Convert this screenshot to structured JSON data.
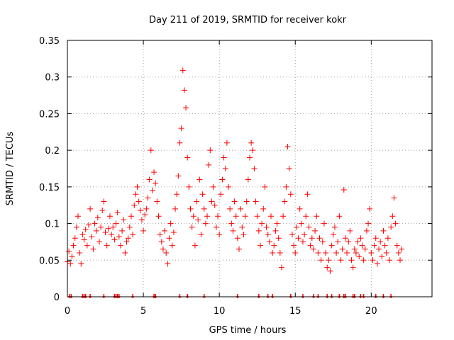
{
  "chart_data": {
    "type": "scatter",
    "title": "Day 211 of 2019, SRMTID for receiver kokr",
    "xlabel": "GPS time / hours",
    "ylabel": "SRMTID / TECUs",
    "xlim": [
      0,
      24
    ],
    "ylim": [
      0,
      0.35
    ],
    "grid": true,
    "marker": "+",
    "x_ticks": [
      0,
      5,
      10,
      15,
      20
    ],
    "x_tick_labels": [
      "0",
      "5",
      "10",
      "15",
      "20"
    ],
    "y_ticks": [
      0,
      0.05,
      0.1,
      0.15,
      0.2,
      0.25,
      0.3,
      0.35
    ],
    "y_tick_labels": [
      "0",
      "0.05",
      "0.1",
      "0.15",
      "0.2",
      "0.25",
      "0.3",
      "0.35"
    ],
    "series": [
      {
        "name": "SRMTID",
        "color": "#ff0000",
        "points": [
          [
            0.0,
            0.048
          ],
          [
            0.1,
            0.062
          ],
          [
            0.2,
            0.045
          ],
          [
            0.3,
            0.055
          ],
          [
            0.4,
            0.07
          ],
          [
            0.5,
            0.08
          ],
          [
            0.6,
            0.095
          ],
          [
            0.7,
            0.11
          ],
          [
            0.8,
            0.06
          ],
          [
            0.9,
            0.045
          ],
          [
            1.0,
            0.085
          ],
          [
            1.1,
            0.078
          ],
          [
            1.2,
            0.092
          ],
          [
            1.3,
            0.07
          ],
          [
            1.4,
            0.098
          ],
          [
            1.5,
            0.12
          ],
          [
            1.6,
            0.082
          ],
          [
            1.7,
            0.065
          ],
          [
            1.8,
            0.1
          ],
          [
            1.9,
            0.09
          ],
          [
            2.0,
            0.108
          ],
          [
            2.1,
            0.075
          ],
          [
            2.2,
            0.095
          ],
          [
            2.3,
            0.118
          ],
          [
            2.4,
            0.13
          ],
          [
            2.5,
            0.088
          ],
          [
            2.6,
            0.07
          ],
          [
            2.7,
            0.093
          ],
          [
            2.8,
            0.11
          ],
          [
            2.9,
            0.085
          ],
          [
            3.0,
            0.095
          ],
          [
            3.1,
            0.078
          ],
          [
            3.2,
            0.1
          ],
          [
            3.3,
            0.115
          ],
          [
            3.4,
            0.082
          ],
          [
            3.5,
            0.07
          ],
          [
            3.6,
            0.09
          ],
          [
            3.7,
            0.105
          ],
          [
            3.8,
            0.06
          ],
          [
            3.9,
            0.075
          ],
          [
            4.0,
            0.08
          ],
          [
            4.1,
            0.095
          ],
          [
            4.2,
            0.11
          ],
          [
            4.3,
            0.085
          ],
          [
            4.4,
            0.125
          ],
          [
            4.5,
            0.14
          ],
          [
            4.6,
            0.15
          ],
          [
            4.7,
            0.13
          ],
          [
            4.8,
            0.118
          ],
          [
            4.9,
            0.105
          ],
          [
            5.0,
            0.09
          ],
          [
            5.1,
            0.112
          ],
          [
            5.2,
            0.12
          ],
          [
            5.3,
            0.135
          ],
          [
            5.4,
            0.16
          ],
          [
            5.5,
            0.2
          ],
          [
            5.6,
            0.145
          ],
          [
            5.7,
            0.17
          ],
          [
            5.8,
            0.155
          ],
          [
            5.9,
            0.13
          ],
          [
            6.0,
            0.11
          ],
          [
            6.1,
            0.085
          ],
          [
            6.2,
            0.075
          ],
          [
            6.3,
            0.065
          ],
          [
            6.4,
            0.09
          ],
          [
            6.5,
            0.06
          ],
          [
            6.6,
            0.045
          ],
          [
            6.7,
            0.08
          ],
          [
            6.8,
            0.1
          ],
          [
            6.9,
            0.07
          ],
          [
            7.0,
            0.088
          ],
          [
            7.1,
            0.12
          ],
          [
            7.2,
            0.14
          ],
          [
            7.3,
            0.165
          ],
          [
            7.4,
            0.21
          ],
          [
            7.5,
            0.23
          ],
          [
            7.6,
            0.309
          ],
          [
            7.7,
            0.282
          ],
          [
            7.8,
            0.258
          ],
          [
            7.9,
            0.19
          ],
          [
            8.0,
            0.15
          ],
          [
            8.1,
            0.12
          ],
          [
            8.2,
            0.095
          ],
          [
            8.3,
            0.11
          ],
          [
            8.4,
            0.07
          ],
          [
            8.5,
            0.13
          ],
          [
            8.6,
            0.105
          ],
          [
            8.7,
            0.16
          ],
          [
            8.8,
            0.085
          ],
          [
            8.9,
            0.14
          ],
          [
            9.0,
            0.12
          ],
          [
            9.1,
            0.1
          ],
          [
            9.2,
            0.11
          ],
          [
            9.3,
            0.18
          ],
          [
            9.4,
            0.2
          ],
          [
            9.5,
            0.13
          ],
          [
            9.6,
            0.15
          ],
          [
            9.7,
            0.125
          ],
          [
            9.8,
            0.095
          ],
          [
            9.9,
            0.11
          ],
          [
            10.0,
            0.085
          ],
          [
            10.1,
            0.14
          ],
          [
            10.2,
            0.16
          ],
          [
            10.3,
            0.19
          ],
          [
            10.4,
            0.175
          ],
          [
            10.5,
            0.21
          ],
          [
            10.6,
            0.15
          ],
          [
            10.7,
            0.12
          ],
          [
            10.8,
            0.1
          ],
          [
            10.9,
            0.09
          ],
          [
            11.0,
            0.13
          ],
          [
            11.1,
            0.11
          ],
          [
            11.2,
            0.08
          ],
          [
            11.3,
            0.065
          ],
          [
            11.4,
            0.12
          ],
          [
            11.5,
            0.095
          ],
          [
            11.6,
            0.085
          ],
          [
            11.7,
            0.11
          ],
          [
            11.8,
            0.13
          ],
          [
            11.9,
            0.16
          ],
          [
            12.0,
            0.19
          ],
          [
            12.1,
            0.21
          ],
          [
            12.2,
            0.2
          ],
          [
            12.3,
            0.175
          ],
          [
            12.4,
            0.13
          ],
          [
            12.5,
            0.11
          ],
          [
            12.6,
            0.09
          ],
          [
            12.7,
            0.07
          ],
          [
            12.8,
            0.1
          ],
          [
            12.9,
            0.12
          ],
          [
            13.0,
            0.15
          ],
          [
            13.1,
            0.095
          ],
          [
            13.2,
            0.085
          ],
          [
            13.3,
            0.075
          ],
          [
            13.4,
            0.11
          ],
          [
            13.5,
            0.06
          ],
          [
            13.6,
            0.07
          ],
          [
            13.7,
            0.09
          ],
          [
            13.8,
            0.1
          ],
          [
            13.9,
            0.08
          ],
          [
            14.0,
            0.06
          ],
          [
            14.1,
            0.04
          ],
          [
            14.2,
            0.11
          ],
          [
            14.3,
            0.13
          ],
          [
            14.4,
            0.15
          ],
          [
            14.5,
            0.205
          ],
          [
            14.6,
            0.175
          ],
          [
            14.7,
            0.14
          ],
          [
            14.8,
            0.085
          ],
          [
            14.9,
            0.07
          ],
          [
            15.0,
            0.06
          ],
          [
            15.1,
            0.095
          ],
          [
            15.2,
            0.08
          ],
          [
            15.3,
            0.12
          ],
          [
            15.4,
            0.1
          ],
          [
            15.5,
            0.075
          ],
          [
            15.6,
            0.085
          ],
          [
            15.7,
            0.11
          ],
          [
            15.8,
            0.14
          ],
          [
            15.9,
            0.095
          ],
          [
            16.0,
            0.07
          ],
          [
            16.1,
            0.08
          ],
          [
            16.2,
            0.065
          ],
          [
            16.3,
            0.09
          ],
          [
            16.4,
            0.11
          ],
          [
            16.5,
            0.06
          ],
          [
            16.6,
            0.08
          ],
          [
            16.7,
            0.05
          ],
          [
            16.8,
            0.075
          ],
          [
            16.9,
            0.1
          ],
          [
            17.0,
            0.06
          ],
          [
            17.1,
            0.04
          ],
          [
            17.2,
            0.05
          ],
          [
            17.3,
            0.035
          ],
          [
            17.4,
            0.07
          ],
          [
            17.5,
            0.085
          ],
          [
            17.6,
            0.095
          ],
          [
            17.7,
            0.06
          ],
          [
            17.8,
            0.075
          ],
          [
            17.9,
            0.11
          ],
          [
            18.0,
            0.05
          ],
          [
            18.1,
            0.065
          ],
          [
            18.2,
            0.146
          ],
          [
            18.3,
            0.08
          ],
          [
            18.4,
            0.06
          ],
          [
            18.5,
            0.075
          ],
          [
            18.6,
            0.09
          ],
          [
            18.7,
            0.05
          ],
          [
            18.8,
            0.04
          ],
          [
            18.9,
            0.065
          ],
          [
            19.0,
            0.06
          ],
          [
            19.1,
            0.075
          ],
          [
            19.2,
            0.055
          ],
          [
            19.3,
            0.08
          ],
          [
            19.4,
            0.07
          ],
          [
            19.5,
            0.05
          ],
          [
            19.6,
            0.065
          ],
          [
            19.7,
            0.09
          ],
          [
            19.8,
            0.1
          ],
          [
            19.9,
            0.12
          ],
          [
            20.0,
            0.06
          ],
          [
            20.1,
            0.05
          ],
          [
            20.2,
            0.07
          ],
          [
            20.3,
            0.08
          ],
          [
            20.4,
            0.045
          ],
          [
            20.5,
            0.065
          ],
          [
            20.6,
            0.075
          ],
          [
            20.7,
            0.055
          ],
          [
            20.8,
            0.09
          ],
          [
            20.9,
            0.07
          ],
          [
            21.0,
            0.06
          ],
          [
            21.1,
            0.08
          ],
          [
            21.2,
            0.05
          ],
          [
            21.3,
            0.095
          ],
          [
            21.4,
            0.11
          ],
          [
            21.5,
            0.135
          ],
          [
            21.6,
            0.1
          ],
          [
            21.7,
            0.07
          ],
          [
            21.8,
            0.06
          ],
          [
            21.9,
            0.05
          ],
          [
            22.0,
            0.065
          ]
        ]
      }
    ],
    "gap_markers_x": [
      0.15,
      0.25,
      1.0,
      1.1,
      1.2,
      1.5,
      2.4,
      3.1,
      3.2,
      3.3,
      3.4,
      4.3,
      5.7,
      5.8,
      7.4,
      7.9,
      9.0,
      11.2,
      12.6,
      13.2,
      13.5,
      14.7,
      15.5,
      16.2,
      16.5,
      17.1,
      17.4,
      17.9,
      18.2,
      18.3,
      18.8,
      18.9,
      19.3,
      19.5,
      20.3,
      20.8,
      21.3
    ]
  }
}
